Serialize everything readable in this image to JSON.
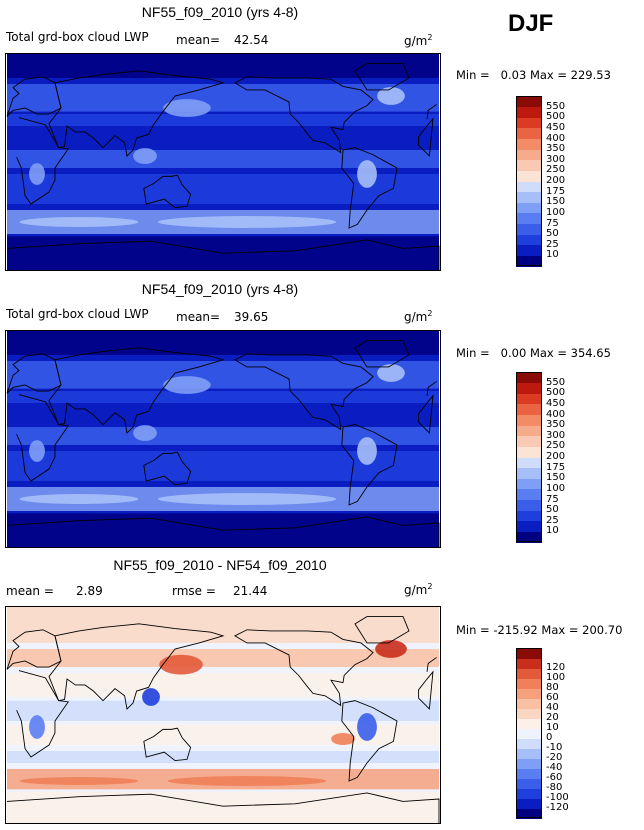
{
  "season": "DJF",
  "units": "g/m",
  "units_sup": "2",
  "palettes": {
    "abs": [
      "#000080",
      "#0a1dc0",
      "#1f3fdd",
      "#3a5eea",
      "#5a7ef2",
      "#7f9ef5",
      "#a6bff8",
      "#cfdcfa",
      "#fbe3d6",
      "#f9c9b3",
      "#f6ab8c",
      "#f28b66",
      "#ea6444",
      "#db3b23",
      "#bd190f",
      "#8a0a05"
    ],
    "diff": [
      "#000080",
      "#0a1dc0",
      "#1f3fdd",
      "#3a5eea",
      "#5a7ef2",
      "#7f9ef5",
      "#a6bff8",
      "#cfdcfa",
      "#eef3fd",
      "#fdf0e8",
      "#fbd7c3",
      "#f9c0a3",
      "#f6a07e",
      "#f07f5a",
      "#e35a3a",
      "#c92e1c",
      "#8a0a05"
    ]
  },
  "chart_data": [
    {
      "type": "heatmap",
      "title": "NF55_f09_2010 (yrs 4-8)",
      "field": "Total grd-box cloud LWP",
      "mean_label": "mean=",
      "mean": "42.54",
      "min_label": "Min =",
      "min": "0.03",
      "max_label": "Max =",
      "max": "229.53",
      "colorbar_levels": [
        "10",
        "25",
        "50",
        "75",
        "100",
        "150",
        "175",
        "200",
        "250",
        "300",
        "350",
        "400",
        "450",
        "500",
        "550"
      ]
    },
    {
      "type": "heatmap",
      "title": "NF54_f09_2010 (yrs 4-8)",
      "field": "Total grd-box cloud LWP",
      "mean_label": "mean=",
      "mean": "39.65",
      "min_label": "Min =",
      "min": "0.00",
      "max_label": "Max =",
      "max": "354.65",
      "colorbar_levels": [
        "10",
        "25",
        "50",
        "75",
        "100",
        "150",
        "175",
        "200",
        "250",
        "300",
        "350",
        "400",
        "450",
        "500",
        "550"
      ]
    },
    {
      "type": "heatmap",
      "title": "NF55_f09_2010 - NF54_f09_2010",
      "mean_label": "mean =",
      "mean": "2.89",
      "rmse_label": "rmse =",
      "rmse": "21.44",
      "min_label": "Min =",
      "min": "-215.92",
      "max_label": "Max =",
      "max": "200.70",
      "colorbar_levels": [
        "-120",
        "-100",
        "-80",
        "-60",
        "-40",
        "-20",
        "-10",
        "0",
        "10",
        "20",
        "40",
        "60",
        "80",
        "100",
        "120"
      ]
    }
  ]
}
